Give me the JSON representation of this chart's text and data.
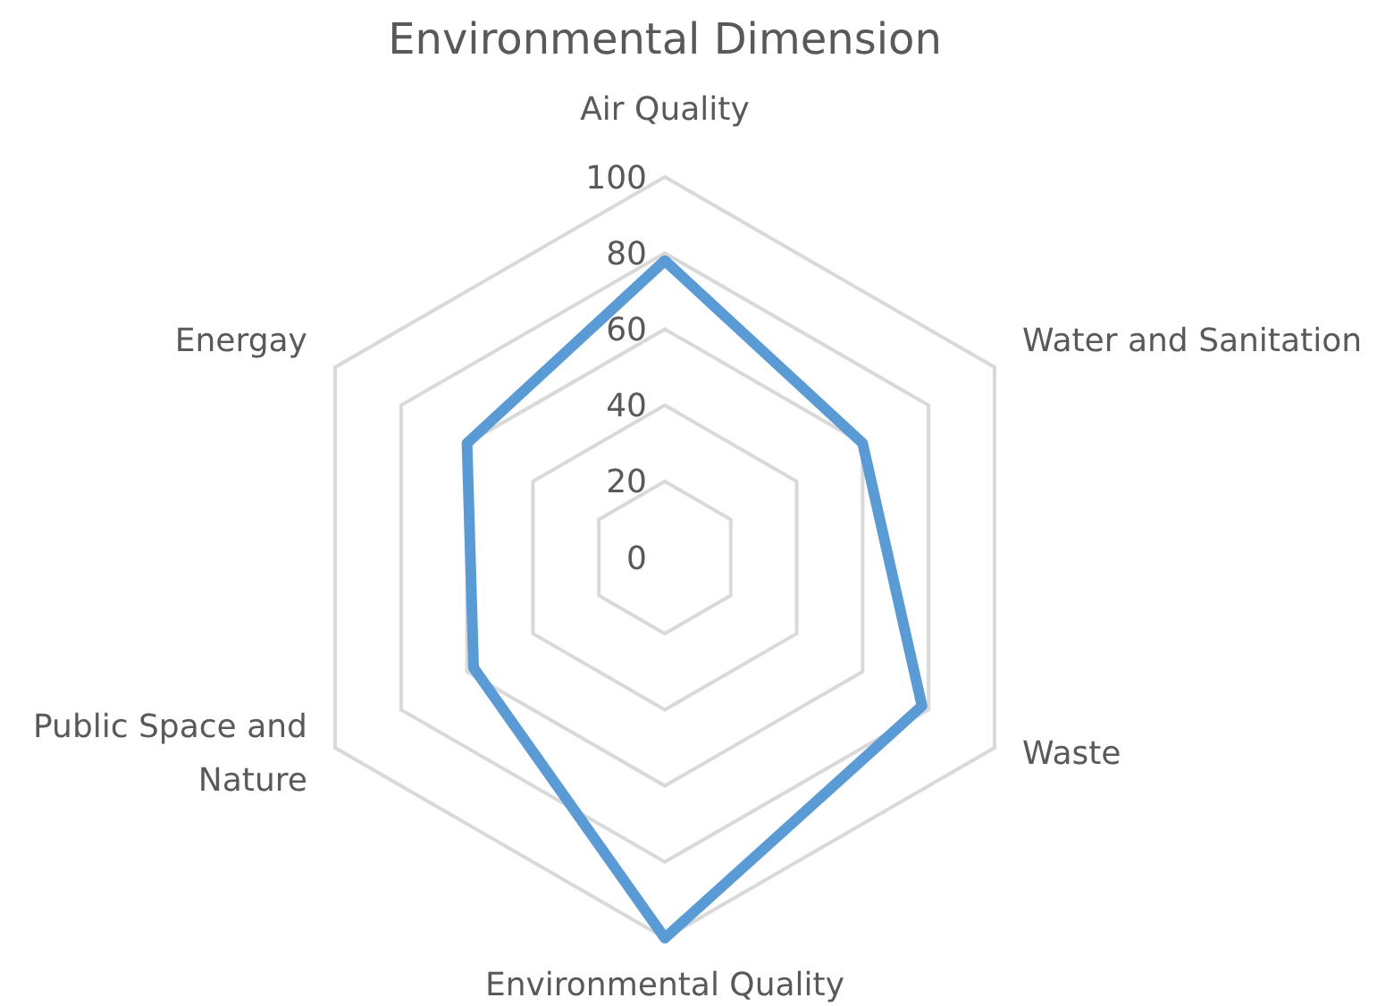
{
  "chart_data": {
    "type": "radar",
    "title": "Environmental Dimension",
    "categories": [
      "Air Quality",
      "Water and Sanitation",
      "Waste",
      "Environmental Quality",
      "Public Space and Nature",
      "Energay"
    ],
    "series": [
      {
        "color": "#5b9bd5",
        "values": [
          78,
          60,
          78,
          100,
          58,
          60
        ]
      }
    ],
    "ylim": [
      0,
      100
    ],
    "yticks": [
      0,
      20,
      40,
      60,
      80,
      100
    ],
    "grid": true,
    "marker": "none",
    "line_style": "solid"
  }
}
